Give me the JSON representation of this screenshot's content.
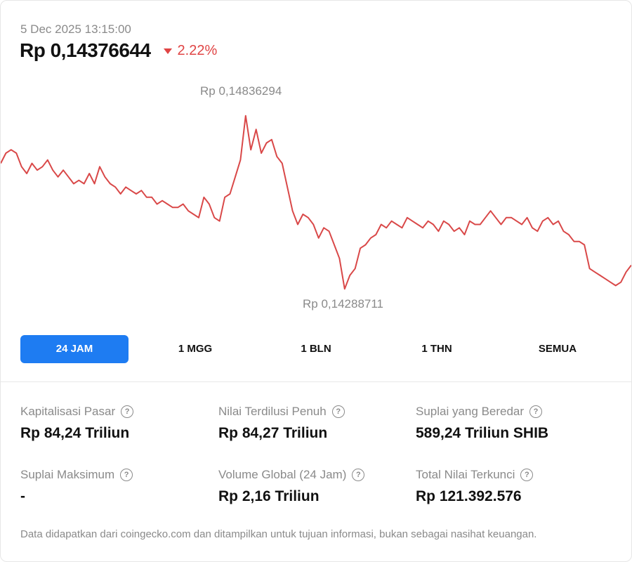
{
  "header": {
    "timestamp": "5 Dec 2025 13:15:00",
    "price": "Rp 0,14376644",
    "change": "2.22%",
    "change_color": "#e04444"
  },
  "chart_data": {
    "type": "line",
    "high_label": "Rp 0,14836294",
    "low_label": "Rp 0,14288711",
    "line_color": "#d94848",
    "ylim": [
      0.1427,
      0.1487
    ],
    "values": [
      0.1466,
      0.1469,
      0.147,
      0.1469,
      0.1465,
      0.1463,
      0.1466,
      0.1464,
      0.1465,
      0.1467,
      0.1464,
      0.1462,
      0.1464,
      0.1462,
      0.146,
      0.1461,
      0.146,
      0.1463,
      0.146,
      0.1465,
      0.1462,
      0.146,
      0.1459,
      0.1457,
      0.1459,
      0.1458,
      0.1457,
      0.1458,
      0.1456,
      0.1456,
      0.1454,
      0.1455,
      0.1454,
      0.1453,
      0.1453,
      0.1454,
      0.1452,
      0.1451,
      0.145,
      0.1456,
      0.1454,
      0.145,
      0.1449,
      0.1456,
      0.1457,
      0.1462,
      0.1467,
      0.148,
      0.147,
      0.1476,
      0.1469,
      0.1472,
      0.1473,
      0.1468,
      0.1466,
      0.1459,
      0.1452,
      0.1448,
      0.1451,
      0.145,
      0.1448,
      0.1444,
      0.1447,
      0.1446,
      0.1442,
      0.1438,
      0.1429,
      0.1433,
      0.1435,
      0.1441,
      0.1442,
      0.1444,
      0.1445,
      0.1448,
      0.1447,
      0.1449,
      0.1448,
      0.1447,
      0.145,
      0.1449,
      0.1448,
      0.1447,
      0.1449,
      0.1448,
      0.1446,
      0.1449,
      0.1448,
      0.1446,
      0.1447,
      0.1445,
      0.1449,
      0.1448,
      0.1448,
      0.145,
      0.1452,
      0.145,
      0.1448,
      0.145,
      0.145,
      0.1449,
      0.1448,
      0.145,
      0.1447,
      0.1446,
      0.1449,
      0.145,
      0.1448,
      0.1449,
      0.1446,
      0.1445,
      0.1443,
      0.1443,
      0.1442,
      0.1435,
      0.1434,
      0.1433,
      0.1432,
      0.1431,
      0.143,
      0.1431,
      0.1434,
      0.1436
    ]
  },
  "tabs": [
    {
      "label": "24 JAM",
      "active": true
    },
    {
      "label": "1 MGG",
      "active": false
    },
    {
      "label": "1 BLN",
      "active": false
    },
    {
      "label": "1 THN",
      "active": false
    },
    {
      "label": "SEMUA",
      "active": false
    }
  ],
  "stats": [
    {
      "label": "Kapitalisasi Pasar",
      "value": "Rp 84,24 Triliun"
    },
    {
      "label": "Nilai Terdilusi Penuh",
      "value": "Rp 84,27 Triliun"
    },
    {
      "label": "Suplai yang Beredar",
      "value": "589,24 Triliun SHIB"
    },
    {
      "label": "Suplai Maksimum",
      "value": "-"
    },
    {
      "label": "Volume Global (24 Jam)",
      "value": "Rp 2,16 Triliun"
    },
    {
      "label": "Total Nilai Terkunci",
      "value": "Rp 121.392.576"
    }
  ],
  "help_icon": "?",
  "footer": "Data didapatkan dari coingecko.com dan ditampilkan untuk tujuan informasi, bukan sebagai nasihat keuangan."
}
